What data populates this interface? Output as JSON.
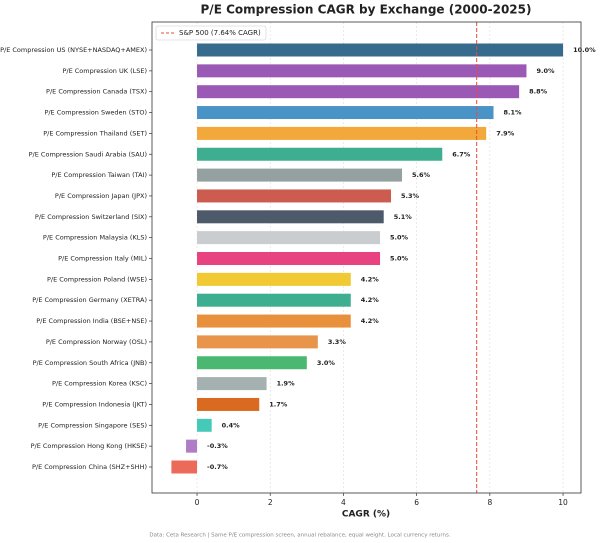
{
  "chart_data": {
    "type": "barh",
    "title": "P/E Compression CAGR by Exchange (2000-2025)",
    "x_label": "CAGR (%)",
    "footnote": "Data: Ceta Research | Same P/E compression screen, annual rebalance, equal weight. Local currency returns.",
    "categories": [
      "P/E Compression US (NYSE+NASDAQ+AMEX)",
      "P/E Compression UK (LSE)",
      "P/E Compression Canada (TSX)",
      "P/E Compression Sweden (STO)",
      "P/E Compression Thailand (SET)",
      "P/E Compression Saudi Arabia (SAU)",
      "P/E Compression Taiwan (TAI)",
      "P/E Compression Japan (JPX)",
      "P/E Compression Switzerland (SIX)",
      "P/E Compression Malaysia (KLS)",
      "P/E Compression Italy (MIL)",
      "P/E Compression Poland (WSE)",
      "P/E Compression Germany (XETRA)",
      "P/E Compression India (BSE+NSE)",
      "P/E Compression Norway (OSL)",
      "P/E Compression South Africa (JNB)",
      "P/E Compression Korea (KSC)",
      "P/E Compression Indonesia (JKT)",
      "P/E Compression Singapore (SES)",
      "P/E Compression Hong Kong (HKSE)",
      "P/E Compression China (SHZ+SHH)"
    ],
    "values": [
      10.0,
      9.0,
      8.8,
      8.1,
      7.9,
      6.7,
      5.6,
      5.3,
      5.1,
      5.0,
      5.0,
      4.2,
      4.2,
      4.2,
      3.3,
      3.0,
      1.9,
      1.7,
      0.4,
      -0.3,
      -0.7
    ],
    "value_labels": [
      "10.0%",
      "9.0%",
      "8.8%",
      "8.1%",
      "7.9%",
      "6.7%",
      "5.6%",
      "5.3%",
      "5.1%",
      "5.0%",
      "5.0%",
      "4.2%",
      "4.2%",
      "4.2%",
      "3.3%",
      "3.0%",
      "1.9%",
      "1.7%",
      "0.4%",
      "-0.3%",
      "-0.7%"
    ],
    "colors": [
      "#376b8e",
      "#9b59b6",
      "#9b59b6",
      "#4a93c6",
      "#f2a83a",
      "#3dae8f",
      "#95a0a1",
      "#cd5c50",
      "#4c5a6a",
      "#c9cdd0",
      "#e84380",
      "#f1c932",
      "#3dae8f",
      "#e8903c",
      "#e8944a",
      "#4ab870",
      "#a5b0b0",
      "#d96a20",
      "#45c9b8",
      "#b07cc6",
      "#ec6a5a"
    ],
    "xlim": [
      -1.23,
      10.49
    ],
    "xticks": [
      0,
      2,
      4,
      6,
      8,
      10
    ],
    "grid": true,
    "reference_line": {
      "value": 7.64,
      "label": "S&P 500 (7.64% CAGR)",
      "color": "#e74c3c"
    },
    "legend": "upper left"
  }
}
